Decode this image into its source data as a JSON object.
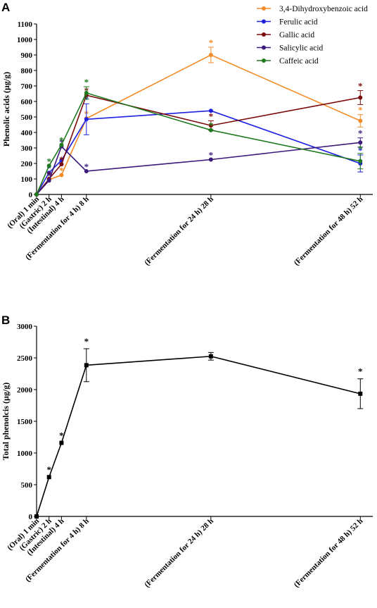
{
  "panels": [
    {
      "letter": "A",
      "chart_data": {
        "type": "line",
        "ylabel": "Phenolic acids (µg/g)",
        "ylim": [
          0,
          1100
        ],
        "yticks": [
          0,
          100,
          200,
          300,
          400,
          500,
          600,
          700,
          800,
          900,
          1000,
          1100
        ],
        "x": [
          0,
          2,
          4,
          8,
          28,
          52
        ],
        "categories": [
          "(Oral) 1 min",
          "(Gastric) 2 h",
          "(Intestinal) 4 h",
          "(Fermentation for 4 h) 8 h",
          "(Fermentation for 24 h) 28 h",
          "(Fermentation for 48 h) 52 h"
        ],
        "legend_position": "top-right",
        "series": [
          {
            "name": "3,4-Dihydroxybenzoic acid",
            "color": "#f28c28",
            "values": [
              0,
              95,
              125,
              490,
              900,
              475
            ],
            "errors": [
              0,
              0,
              0,
              0,
              50,
              40
            ],
            "significant": [
              false,
              true,
              true,
              true,
              true,
              true
            ]
          },
          {
            "name": "Ferulic acid",
            "color": "#1f1fe0",
            "values": [
              0,
              140,
              220,
              485,
              540,
              200
            ],
            "errors": [
              0,
              0,
              0,
              100,
              0,
              55
            ],
            "significant": [
              false,
              true,
              false,
              true,
              false,
              true
            ]
          },
          {
            "name": "Gallic acid",
            "color": "#7a0a0a",
            "values": [
              0,
              100,
              195,
              640,
              445,
              625
            ],
            "errors": [
              0,
              0,
              0,
              0,
              30,
              45
            ],
            "significant": [
              false,
              true,
              true,
              true,
              true,
              true
            ]
          },
          {
            "name": "Salicylic acid",
            "color": "#3a1a7a",
            "values": [
              0,
              90,
              310,
              150,
              225,
              335
            ],
            "errors": [
              0,
              0,
              0,
              0,
              0,
              30
            ],
            "significant": [
              false,
              true,
              true,
              true,
              true,
              true
            ]
          },
          {
            "name": "Caffeic acid",
            "color": "#1f7a1f",
            "values": [
              0,
              185,
              320,
              655,
              415,
              215
            ],
            "errors": [
              0,
              0,
              0,
              40,
              0,
              50
            ],
            "significant": [
              false,
              true,
              true,
              true,
              true,
              true
            ]
          }
        ]
      }
    },
    {
      "letter": "B",
      "chart_data": {
        "type": "line",
        "ylabel": "Total phenolcis (µg/g)",
        "ylim": [
          0,
          3000
        ],
        "yticks": [
          0,
          500,
          1000,
          1500,
          2000,
          2500,
          3000
        ],
        "x": [
          0,
          2,
          4,
          8,
          28,
          52
        ],
        "categories": [
          "(Oral) 1 min",
          "(Gastric) 2 h",
          "(Intestinal) 4 h",
          "(Fermentation for 4 h) 8 h",
          "(Fermentation for 24 h) 28 h",
          "(Fermentation for 48 h) 52 h"
        ],
        "series": [
          {
            "name": "",
            "color": "#000000",
            "values": [
              0,
              620,
              1160,
              2385,
              2525,
              1935
            ],
            "errors": [
              0,
              0,
              0,
              260,
              60,
              235
            ],
            "significant": [
              false,
              true,
              true,
              true,
              false,
              true
            ]
          }
        ]
      }
    }
  ],
  "significance_mark": "*"
}
